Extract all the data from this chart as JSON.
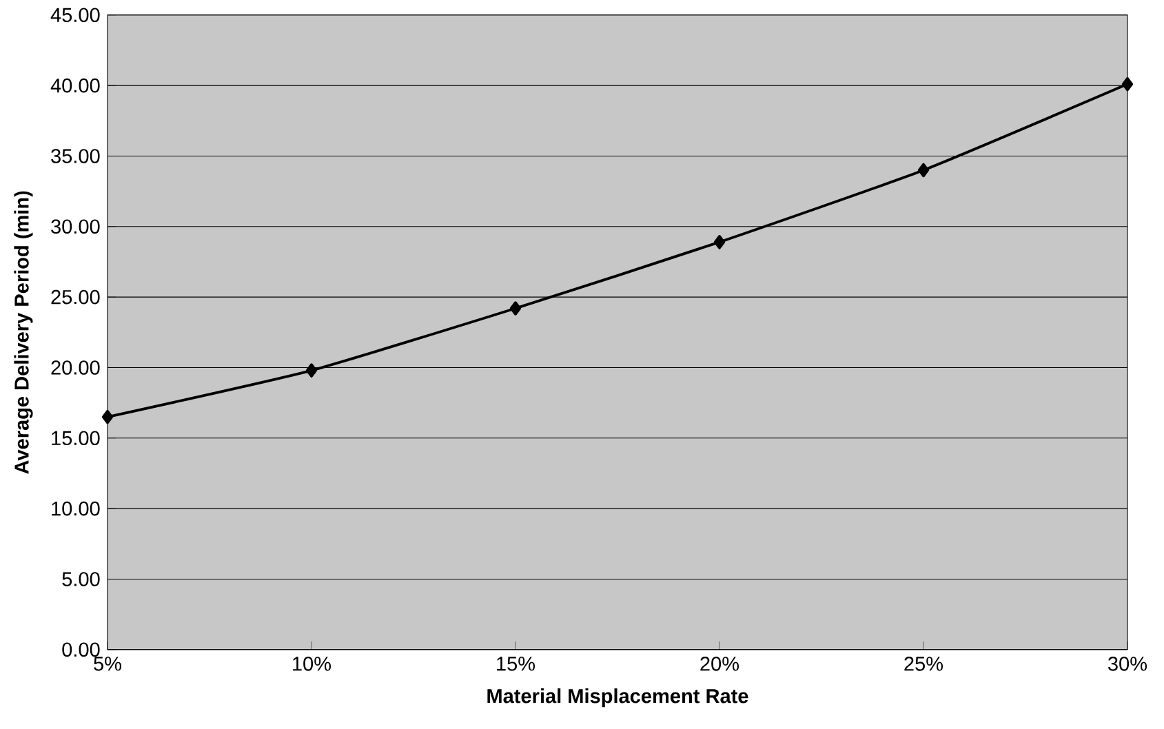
{
  "chart_data": {
    "type": "line",
    "xlabel": "Material Misplacement Rate",
    "ylabel": "Average Delivery Period (min)",
    "categories": [
      "5%",
      "10%",
      "15%",
      "20%",
      "25%",
      "30%"
    ],
    "series": [
      {
        "color": "#000000",
        "values": [
          16.5,
          19.8,
          24.2,
          28.9,
          34.0,
          40.1
        ]
      }
    ],
    "ylim": [
      0,
      45
    ],
    "yticks": [
      {
        "value": 0,
        "label": "0.00"
      },
      {
        "value": 5,
        "label": "5.00"
      },
      {
        "value": 10,
        "label": "10.00"
      },
      {
        "value": 15,
        "label": "15.00"
      },
      {
        "value": 20,
        "label": "20.00"
      },
      {
        "value": 25,
        "label": "25.00"
      },
      {
        "value": 30,
        "label": "30.00"
      },
      {
        "value": 35,
        "label": "35.00"
      },
      {
        "value": 40,
        "label": "40.00"
      },
      {
        "value": 45,
        "label": "45.00"
      }
    ],
    "grid": "y",
    "marker": "diamond",
    "line_style": "solid"
  }
}
